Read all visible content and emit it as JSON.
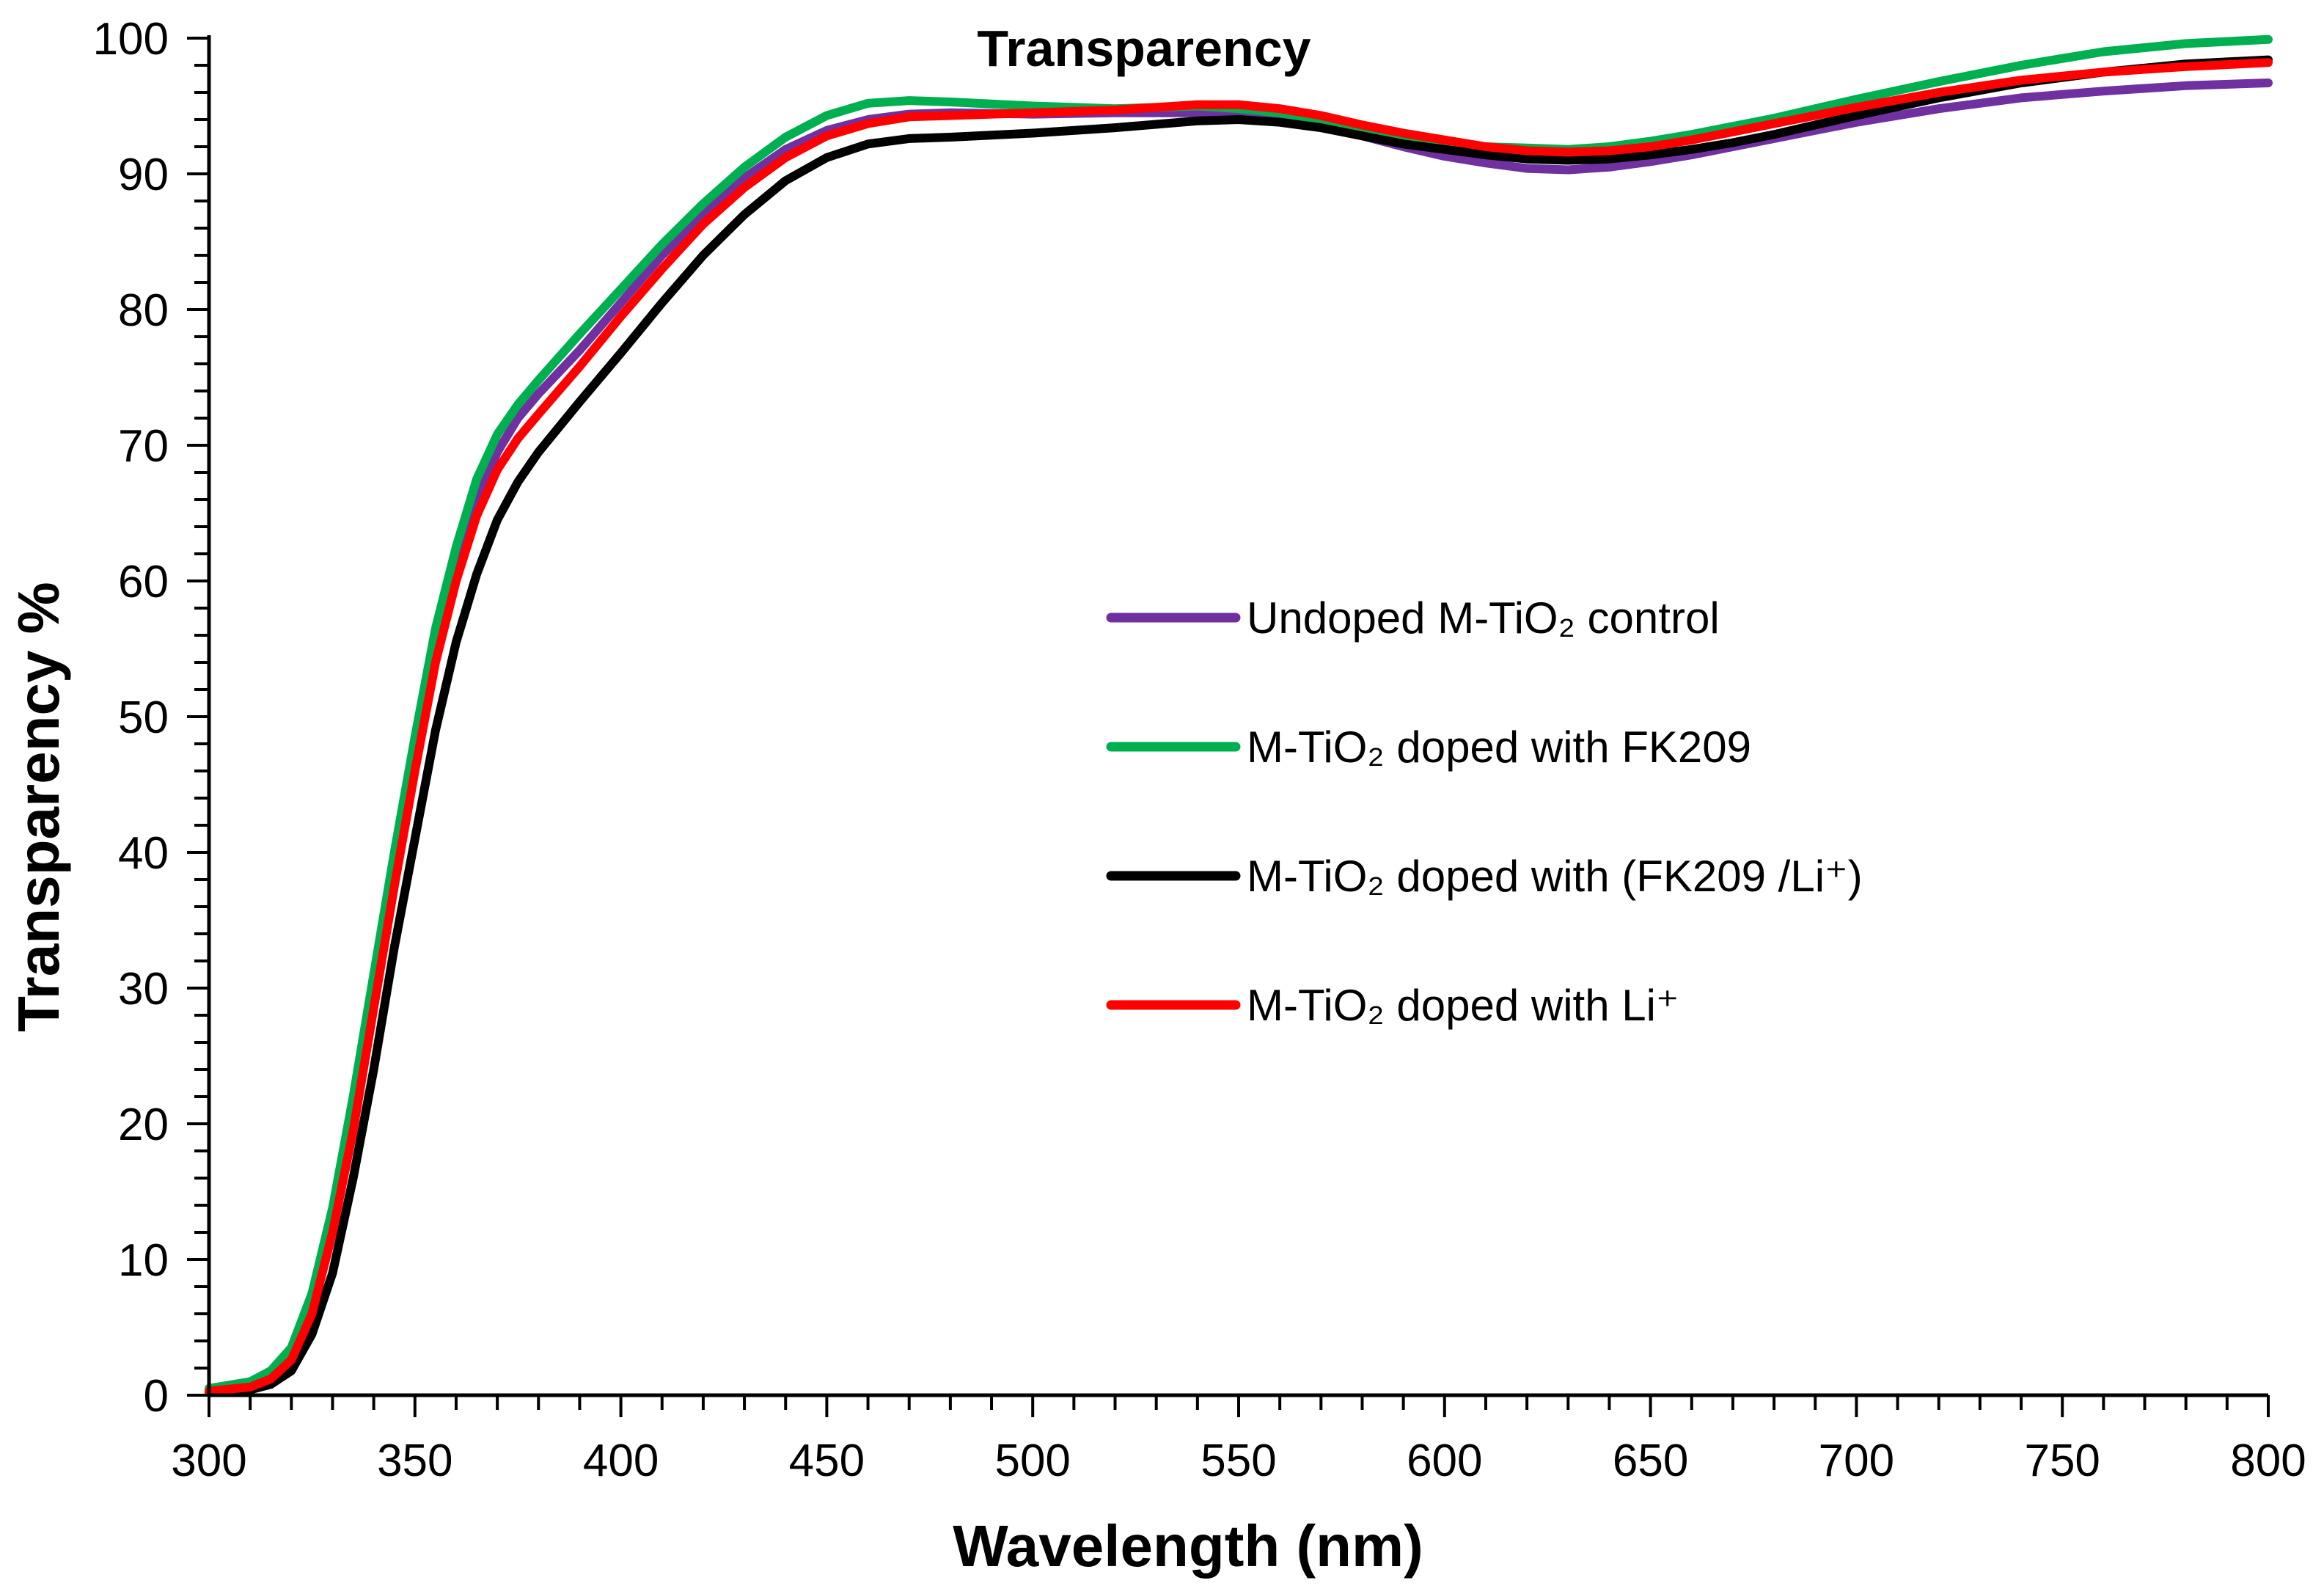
{
  "chart_data": {
    "type": "line",
    "title": "Transparency",
    "xlabel": "Wavelength (nm)",
    "ylabel": "Transparency  %",
    "xlim": [
      300,
      800
    ],
    "ylim": [
      0,
      100
    ],
    "xticks": [
      300,
      350,
      400,
      450,
      500,
      550,
      600,
      650,
      700,
      750,
      800
    ],
    "yticks": [
      0,
      10,
      20,
      30,
      40,
      50,
      60,
      70,
      80,
      90,
      100
    ],
    "x_minor_step": 10,
    "y_minor_step": 2,
    "grid": false,
    "legend_position": "right-center",
    "series": [
      {
        "name": "Undoped M-TiO₂ control",
        "color": "#7030A0",
        "points": [
          [
            300,
            0.4
          ],
          [
            310,
            0.8
          ],
          [
            315,
            1.5
          ],
          [
            320,
            3
          ],
          [
            325,
            7
          ],
          [
            330,
            13
          ],
          [
            335,
            21
          ],
          [
            340,
            30
          ],
          [
            345,
            39
          ],
          [
            350,
            47
          ],
          [
            355,
            55
          ],
          [
            360,
            61
          ],
          [
            365,
            66
          ],
          [
            370,
            69.5
          ],
          [
            375,
            72
          ],
          [
            380,
            73.8
          ],
          [
            390,
            77
          ],
          [
            400,
            80.5
          ],
          [
            410,
            84
          ],
          [
            420,
            87
          ],
          [
            430,
            89.7
          ],
          [
            440,
            91.8
          ],
          [
            450,
            93.2
          ],
          [
            460,
            94
          ],
          [
            470,
            94.4
          ],
          [
            480,
            94.5
          ],
          [
            500,
            94.4
          ],
          [
            520,
            94.5
          ],
          [
            540,
            94.5
          ],
          [
            550,
            94.3
          ],
          [
            560,
            94
          ],
          [
            570,
            93.5
          ],
          [
            580,
            92.8
          ],
          [
            590,
            92
          ],
          [
            600,
            91.3
          ],
          [
            610,
            90.8
          ],
          [
            620,
            90.4
          ],
          [
            630,
            90.3
          ],
          [
            640,
            90.5
          ],
          [
            650,
            90.9
          ],
          [
            660,
            91.4
          ],
          [
            670,
            92
          ],
          [
            680,
            92.6
          ],
          [
            690,
            93.2
          ],
          [
            700,
            93.8
          ],
          [
            720,
            94.8
          ],
          [
            740,
            95.6
          ],
          [
            760,
            96.1
          ],
          [
            780,
            96.5
          ],
          [
            800,
            96.7
          ]
        ]
      },
      {
        "name": "M-TiO₂ doped with FK209",
        "color": "#00B050",
        "points": [
          [
            300,
            0.5
          ],
          [
            310,
            1
          ],
          [
            315,
            1.8
          ],
          [
            320,
            3.5
          ],
          [
            325,
            7.5
          ],
          [
            330,
            13.8
          ],
          [
            335,
            22
          ],
          [
            340,
            31
          ],
          [
            345,
            40
          ],
          [
            350,
            48.5
          ],
          [
            355,
            56.5
          ],
          [
            360,
            62.5
          ],
          [
            365,
            67.5
          ],
          [
            370,
            70.8
          ],
          [
            375,
            73
          ],
          [
            380,
            74.8
          ],
          [
            390,
            78.2
          ],
          [
            400,
            81.5
          ],
          [
            410,
            84.8
          ],
          [
            420,
            87.8
          ],
          [
            430,
            90.5
          ],
          [
            440,
            92.7
          ],
          [
            450,
            94.3
          ],
          [
            460,
            95.2
          ],
          [
            470,
            95.4
          ],
          [
            480,
            95.3
          ],
          [
            500,
            95
          ],
          [
            520,
            94.8
          ],
          [
            540,
            95
          ],
          [
            550,
            94.8
          ],
          [
            560,
            94.5
          ],
          [
            570,
            94
          ],
          [
            580,
            93.4
          ],
          [
            590,
            92.8
          ],
          [
            600,
            92.3
          ],
          [
            610,
            92
          ],
          [
            620,
            91.9
          ],
          [
            630,
            91.8
          ],
          [
            640,
            92
          ],
          [
            650,
            92.4
          ],
          [
            660,
            92.9
          ],
          [
            670,
            93.5
          ],
          [
            680,
            94.1
          ],
          [
            690,
            94.8
          ],
          [
            700,
            95.5
          ],
          [
            720,
            96.8
          ],
          [
            740,
            98
          ],
          [
            760,
            99
          ],
          [
            780,
            99.6
          ],
          [
            800,
            99.9
          ]
        ]
      },
      {
        "name": "M-TiO₂ doped with (FK209 /Li⁺)",
        "color": "#000000",
        "points": [
          [
            300,
            0.2
          ],
          [
            310,
            0.4
          ],
          [
            315,
            0.8
          ],
          [
            320,
            1.8
          ],
          [
            325,
            4.5
          ],
          [
            330,
            9
          ],
          [
            335,
            16
          ],
          [
            340,
            24
          ],
          [
            345,
            33
          ],
          [
            350,
            41
          ],
          [
            355,
            49
          ],
          [
            360,
            55.5
          ],
          [
            365,
            60.5
          ],
          [
            370,
            64.5
          ],
          [
            375,
            67.3
          ],
          [
            380,
            69.5
          ],
          [
            390,
            73.2
          ],
          [
            400,
            76.8
          ],
          [
            410,
            80.5
          ],
          [
            420,
            84
          ],
          [
            430,
            87
          ],
          [
            440,
            89.5
          ],
          [
            450,
            91.2
          ],
          [
            460,
            92.2
          ],
          [
            470,
            92.6
          ],
          [
            480,
            92.7
          ],
          [
            500,
            93
          ],
          [
            520,
            93.4
          ],
          [
            540,
            93.9
          ],
          [
            550,
            94
          ],
          [
            560,
            93.8
          ],
          [
            570,
            93.4
          ],
          [
            580,
            92.8
          ],
          [
            590,
            92.2
          ],
          [
            600,
            91.8
          ],
          [
            610,
            91.4
          ],
          [
            620,
            91.1
          ],
          [
            630,
            91
          ],
          [
            640,
            91.1
          ],
          [
            650,
            91.4
          ],
          [
            660,
            91.8
          ],
          [
            670,
            92.3
          ],
          [
            680,
            92.9
          ],
          [
            690,
            93.6
          ],
          [
            700,
            94.3
          ],
          [
            720,
            95.6
          ],
          [
            740,
            96.7
          ],
          [
            760,
            97.5
          ],
          [
            780,
            98.1
          ],
          [
            800,
            98.4
          ]
        ]
      },
      {
        "name": "M-TiO₂ doped with Li⁺",
        "color": "#FF0000",
        "points": [
          [
            300,
            0.3
          ],
          [
            310,
            0.6
          ],
          [
            315,
            1.2
          ],
          [
            320,
            2.6
          ],
          [
            325,
            6
          ],
          [
            330,
            12
          ],
          [
            335,
            19.5
          ],
          [
            340,
            28.5
          ],
          [
            345,
            37.5
          ],
          [
            350,
            46
          ],
          [
            355,
            54
          ],
          [
            360,
            60
          ],
          [
            365,
            64.8
          ],
          [
            370,
            68.2
          ],
          [
            375,
            70.5
          ],
          [
            380,
            72.3
          ],
          [
            390,
            75.8
          ],
          [
            400,
            79.5
          ],
          [
            410,
            83
          ],
          [
            420,
            86.3
          ],
          [
            430,
            89
          ],
          [
            440,
            91.2
          ],
          [
            450,
            92.8
          ],
          [
            460,
            93.7
          ],
          [
            470,
            94.2
          ],
          [
            480,
            94.3
          ],
          [
            500,
            94.5
          ],
          [
            520,
            94.7
          ],
          [
            540,
            95.1
          ],
          [
            550,
            95.1
          ],
          [
            560,
            94.8
          ],
          [
            570,
            94.3
          ],
          [
            580,
            93.6
          ],
          [
            590,
            93
          ],
          [
            600,
            92.5
          ],
          [
            610,
            92
          ],
          [
            620,
            91.7
          ],
          [
            630,
            91.6
          ],
          [
            640,
            91.7
          ],
          [
            650,
            92
          ],
          [
            660,
            92.5
          ],
          [
            670,
            93.1
          ],
          [
            680,
            93.7
          ],
          [
            690,
            94.3
          ],
          [
            700,
            94.9
          ],
          [
            720,
            96
          ],
          [
            740,
            96.9
          ],
          [
            760,
            97.5
          ],
          [
            780,
            97.9
          ],
          [
            800,
            98.2
          ]
        ]
      }
    ]
  }
}
